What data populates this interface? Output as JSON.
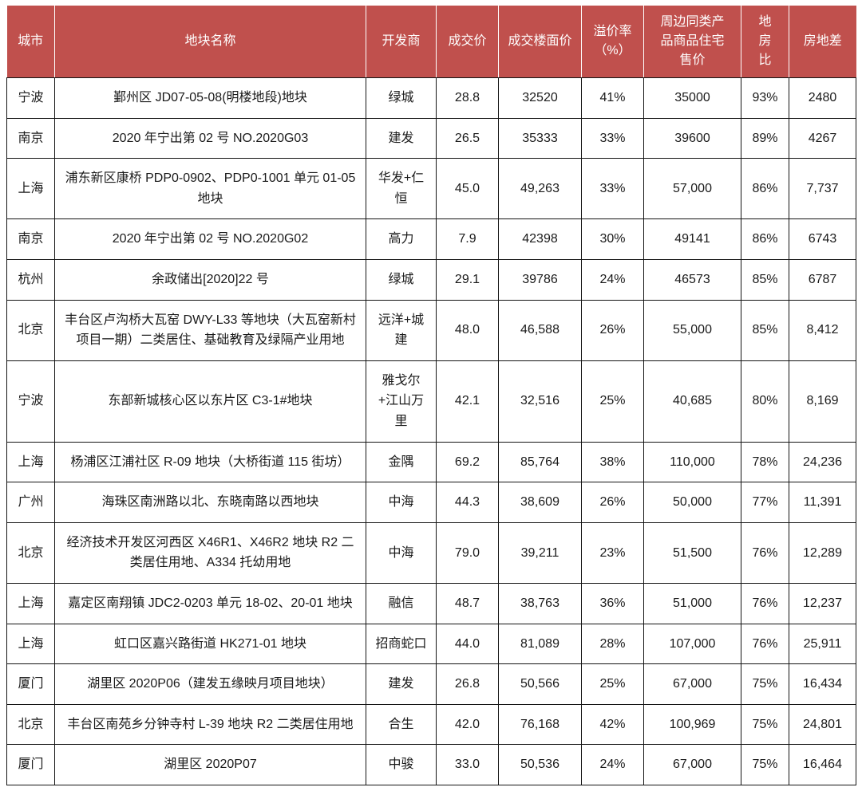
{
  "colors": {
    "header_bg": "#c0504d",
    "header_fg": "#ffffff",
    "grid_line": "#141414",
    "body_bg": "#ffffff"
  },
  "chart_data": {
    "type": "table",
    "title": "",
    "columns": [
      {
        "key": "city",
        "label": "城市"
      },
      {
        "key": "parcel_name",
        "label": "地块名称"
      },
      {
        "key": "developer",
        "label": "开发商"
      },
      {
        "key": "deal_price",
        "label": "成交价"
      },
      {
        "key": "floor_price",
        "label": "成交楼面价"
      },
      {
        "key": "premium_rate",
        "label": "溢价率（%）"
      },
      {
        "key": "nearby_home_price",
        "label": "周边同类产品商品住宅售价"
      },
      {
        "key": "land_house_ratio",
        "label": "地房比"
      },
      {
        "key": "price_gap",
        "label": "房地差"
      }
    ],
    "rows": [
      [
        "宁波",
        "鄞州区 JD07-05-08(明楼地段)地块",
        "绿城",
        "28.8",
        "32520",
        "41%",
        "35000",
        "93%",
        "2480"
      ],
      [
        "南京",
        "2020 年宁出第 02 号 NO.2020G03",
        "建发",
        "26.5",
        "35333",
        "33%",
        "39600",
        "89%",
        "4267"
      ],
      [
        "上海",
        "浦东新区康桥 PDP0-0902、PDP0-1001 单元 01-05 地块",
        "华发+仁恒",
        "45.0",
        "49,263",
        "33%",
        "57,000",
        "86%",
        "7,737"
      ],
      [
        "南京",
        "2020 年宁出第 02 号 NO.2020G02",
        "高力",
        "7.9",
        "42398",
        "30%",
        "49141",
        "86%",
        "6743"
      ],
      [
        "杭州",
        "余政储出[2020]22 号",
        "绿城",
        "29.1",
        "39786",
        "24%",
        "46573",
        "85%",
        "6787"
      ],
      [
        "北京",
        "丰台区卢沟桥大瓦窑 DWY-L33 等地块（大瓦窑新村项目一期）二类居住、基础教育及绿隔产业用地",
        "远洋+城建",
        "48.0",
        "46,588",
        "26%",
        "55,000",
        "85%",
        "8,412"
      ],
      [
        "宁波",
        "东部新城核心区以东片区 C3-1#地块",
        "雅戈尔+江山万里",
        "42.1",
        "32,516",
        "25%",
        "40,685",
        "80%",
        "8,169"
      ],
      [
        "上海",
        "杨浦区江浦社区 R-09 地块（大桥街道 115 街坊）",
        "金隅",
        "69.2",
        "85,764",
        "38%",
        "110,000",
        "78%",
        "24,236"
      ],
      [
        "广州",
        "海珠区南洲路以北、东晓南路以西地块",
        "中海",
        "44.3",
        "38,609",
        "26%",
        "50,000",
        "77%",
        "11,391"
      ],
      [
        "北京",
        "经济技术开发区河西区 X46R1、X46R2 地块 R2 二类居住用地、A334 托幼用地",
        "中海",
        "79.0",
        "39,211",
        "23%",
        "51,500",
        "76%",
        "12,289"
      ],
      [
        "上海",
        "嘉定区南翔镇 JDC2-0203 单元 18-02、20-01 地块",
        "融信",
        "48.7",
        "38,763",
        "36%",
        "51,000",
        "76%",
        "12,237"
      ],
      [
        "上海",
        "虹口区嘉兴路街道 HK271-01 地块",
        "招商蛇口",
        "44.0",
        "81,089",
        "28%",
        "107,000",
        "76%",
        "25,911"
      ],
      [
        "厦门",
        "湖里区 2020P06（建发五缘映月项目地块）",
        "建发",
        "26.8",
        "50,566",
        "25%",
        "67,000",
        "75%",
        "16,434"
      ],
      [
        "北京",
        "丰台区南苑乡分钟寺村 L-39 地块 R2 二类居住用地",
        "合生",
        "42.0",
        "76,168",
        "42%",
        "100,969",
        "75%",
        "24,801"
      ],
      [
        "厦门",
        "湖里区 2020P07",
        "中骏",
        "33.0",
        "50,536",
        "24%",
        "67,000",
        "75%",
        "16,464"
      ]
    ]
  }
}
